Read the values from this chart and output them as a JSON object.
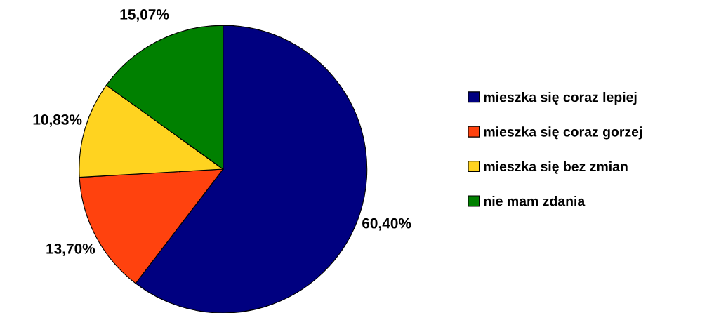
{
  "chart_data": {
    "type": "pie",
    "categories": [
      "mieszka się coraz lepiej",
      "mieszka się coraz gorzej",
      "mieszka się bez zmian",
      "nie mam zdania"
    ],
    "values": [
      60.4,
      13.7,
      10.83,
      15.07
    ],
    "value_labels": [
      "60,40%",
      "13,70%",
      "10,83%",
      "15,07%"
    ],
    "colors": [
      "#000080",
      "#ff420e",
      "#ffd320",
      "#008000"
    ],
    "legend": "right"
  }
}
